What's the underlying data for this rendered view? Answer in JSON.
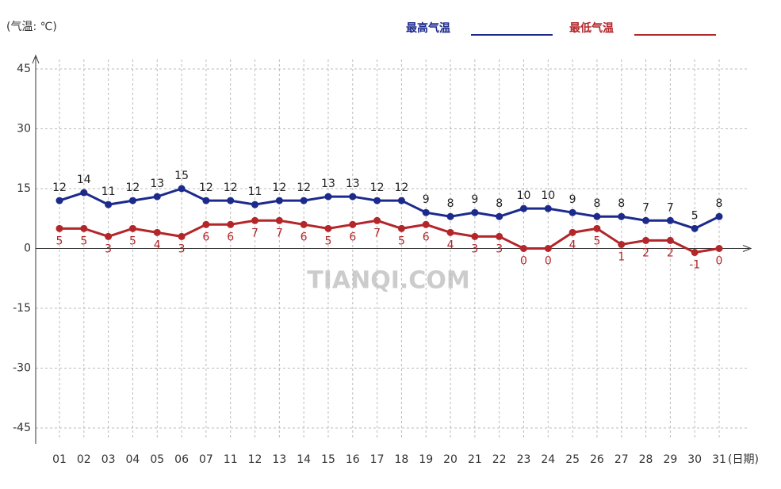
{
  "chart_data": {
    "type": "line",
    "y_unit_label": "(气温: ℃)",
    "x_unit_label": "(日期)",
    "watermark": "TIANQI.COM",
    "categories": [
      "01",
      "02",
      "03",
      "04",
      "05",
      "06",
      "07",
      "11",
      "12",
      "13",
      "14",
      "15",
      "16",
      "17",
      "18",
      "19",
      "20",
      "21",
      "22",
      "23",
      "24",
      "25",
      "26",
      "27",
      "28",
      "29",
      "30",
      "31"
    ],
    "series": [
      {
        "name": "最高气温",
        "color": "#1c2a8c",
        "values": [
          12,
          14,
          11,
          12,
          13,
          15,
          12,
          12,
          11,
          12,
          12,
          13,
          13,
          12,
          12,
          9,
          8,
          9,
          8,
          10,
          10,
          9,
          8,
          8,
          7,
          7,
          5,
          8
        ]
      },
      {
        "name": "最低气温",
        "color": "#b3262a",
        "values": [
          5,
          5,
          3,
          5,
          4,
          3,
          6,
          6,
          7,
          7,
          6,
          5,
          6,
          7,
          5,
          6,
          4,
          3,
          3,
          0,
          0,
          4,
          5,
          1,
          2,
          2,
          -1,
          0
        ]
      }
    ],
    "ylim": [
      -45,
      45
    ],
    "yticks": [
      -45,
      -30,
      -15,
      0,
      15,
      30,
      45
    ],
    "grid": true
  }
}
